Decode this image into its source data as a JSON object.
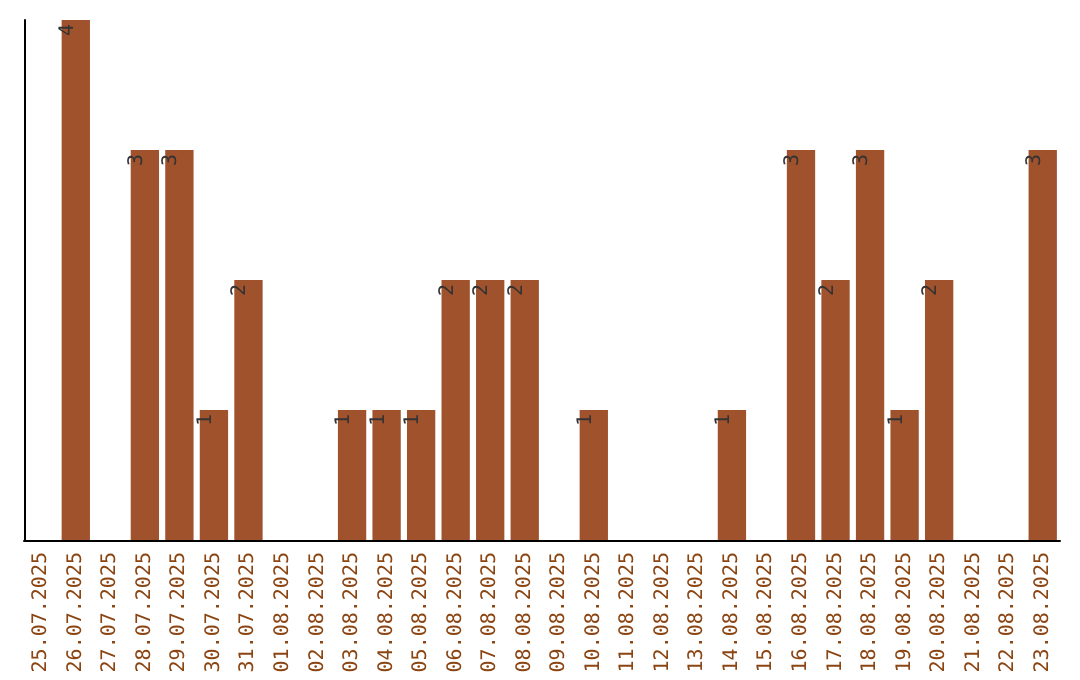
{
  "chart_data": {
    "type": "bar",
    "categories": [
      "25.07.2025",
      "26.07.2025",
      "27.07.2025",
      "28.07.2025",
      "29.07.2025",
      "30.07.2025",
      "31.07.2025",
      "01.08.2025",
      "02.08.2025",
      "03.08.2025",
      "04.08.2025",
      "05.08.2025",
      "06.08.2025",
      "07.08.2025",
      "08.08.2025",
      "09.08.2025",
      "10.08.2025",
      "11.08.2025",
      "12.08.2025",
      "13.08.2025",
      "14.08.2025",
      "15.08.2025",
      "16.08.2025",
      "17.08.2025",
      "18.08.2025",
      "19.08.2025",
      "20.08.2025",
      "21.08.2025",
      "22.08.2025",
      "23.08.2025"
    ],
    "values": [
      0,
      4,
      0,
      3,
      3,
      1,
      2,
      0,
      0,
      1,
      1,
      1,
      2,
      2,
      2,
      0,
      1,
      0,
      0,
      0,
      1,
      0,
      3,
      2,
      3,
      1,
      2,
      0,
      0,
      3
    ],
    "value_labels": [
      null,
      "4",
      null,
      "3",
      "3",
      "1",
      "2",
      null,
      null,
      "1",
      "1",
      "1",
      "2",
      "2",
      "2",
      null,
      "1",
      null,
      null,
      null,
      "1",
      null,
      "3",
      "2",
      "3",
      "1",
      "2",
      null,
      null,
      "3"
    ],
    "color": "#a0522d",
    "grid": false
  }
}
